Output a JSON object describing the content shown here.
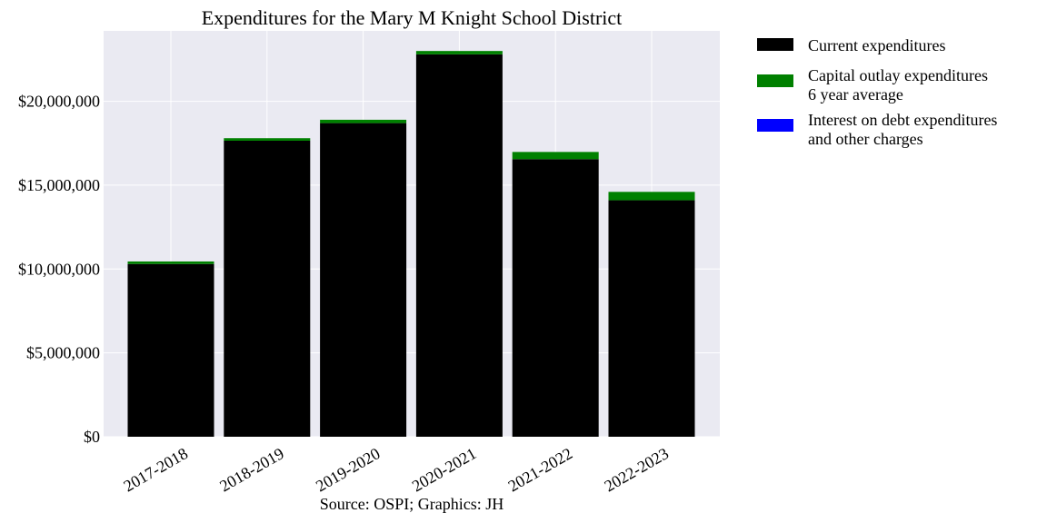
{
  "chart_data": {
    "type": "bar",
    "stacked": true,
    "title": "Expenditures for the Mary M Knight School District",
    "categories": [
      "2017-2018",
      "2018-2019",
      "2019-2020",
      "2020-2021",
      "2021-2022",
      "2022-2023"
    ],
    "series": [
      {
        "name": "Current expenditures",
        "color": "#000000",
        "values": [
          10300000,
          17650000,
          18700000,
          22800000,
          16550000,
          14100000
        ]
      },
      {
        "name": "Capital outlay expenditures\n6 year average",
        "color": "#008000",
        "values": [
          150000,
          150000,
          200000,
          200000,
          430000,
          500000
        ]
      },
      {
        "name": "Interest on debt expenditures\nand other charges",
        "color": "#0000ff",
        "values": [
          0,
          0,
          0,
          0,
          0,
          0
        ]
      }
    ],
    "ylim": [
      0,
      24200000
    ],
    "yticks": [
      0,
      5000000,
      10000000,
      15000000,
      20000000
    ],
    "ytick_labels": [
      "$0",
      "$5,000,000",
      "$10,000,000",
      "$15,000,000",
      "$20,000,000"
    ],
    "grid": true,
    "legend_position": "outside-top-right",
    "source": "Source: OSPI; Graphics: JH"
  }
}
